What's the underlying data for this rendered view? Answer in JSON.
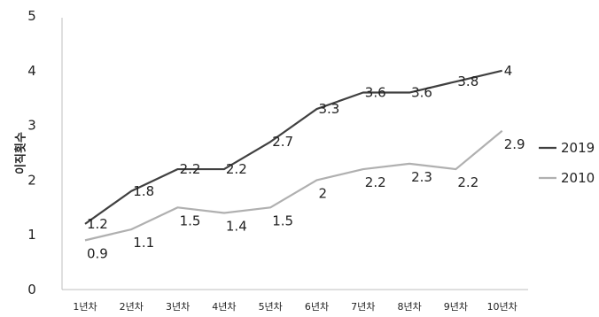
{
  "chart_data": {
    "type": "line",
    "title": "",
    "xlabel": "",
    "ylabel": "이직횟수",
    "categories": [
      "1년차",
      "2년차",
      "3년차",
      "4년차",
      "5년차",
      "6년차",
      "7년차",
      "8년차",
      "9년차",
      "10년차"
    ],
    "yticks": [
      "0",
      "1",
      "2",
      "3",
      "4",
      "5"
    ],
    "ylim": [
      0,
      5
    ],
    "grid": false,
    "legend_position": "right",
    "series": [
      {
        "name": "2019",
        "color": "#404040",
        "values": [
          1.2,
          1.8,
          2.2,
          2.2,
          2.7,
          3.3,
          3.6,
          3.6,
          3.8,
          4
        ],
        "labels": [
          "1.2",
          "1.8",
          "2.2",
          "2.2",
          "2.7",
          "3.3",
          "3.6",
          "3.6",
          "3.8",
          "4"
        ]
      },
      {
        "name": "2010",
        "color": "#b0b0b0",
        "values": [
          0.9,
          1.1,
          1.5,
          1.4,
          1.5,
          2,
          2.2,
          2.3,
          2.2,
          2.9
        ],
        "labels": [
          "0.9",
          "1.1",
          "1.5",
          "1.4",
          "1.5",
          "2",
          "2.2",
          "2.3",
          "2.2",
          "2.9"
        ]
      }
    ]
  }
}
